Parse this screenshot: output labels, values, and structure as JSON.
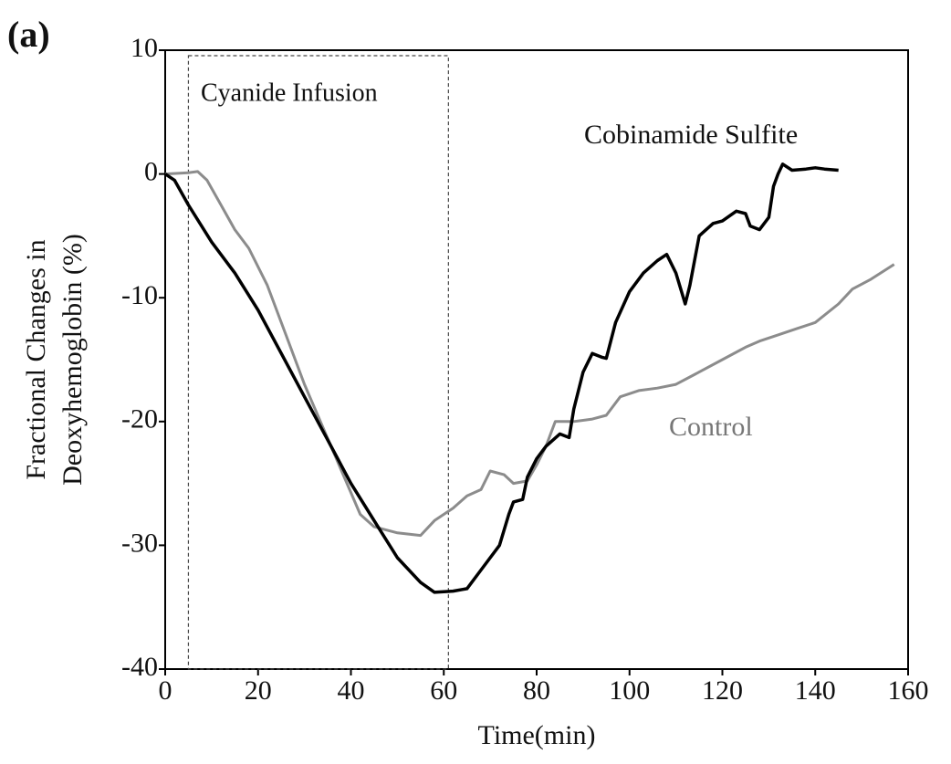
{
  "chart_data": {
    "type": "line",
    "panel_label": "(a)",
    "xlabel": "Time(min)",
    "ylabel": [
      "Fractional Changes in",
      "Deoxyhemoglobin (%)"
    ],
    "xlim": [
      0,
      160
    ],
    "xticks": [
      0,
      20,
      40,
      60,
      80,
      100,
      120,
      140,
      160
    ],
    "ylim": [
      -40,
      10
    ],
    "yticks": [
      10,
      0,
      -10,
      -20,
      -30,
      -40
    ],
    "grid": false,
    "region": {
      "label": "Cyanide Infusion",
      "x": [
        5,
        61
      ]
    },
    "series": [
      {
        "name": "Cobinamide Sulfite",
        "color": "#000000",
        "x": [
          0,
          2,
          5,
          10,
          15,
          20,
          25,
          30,
          35,
          40,
          45,
          50,
          55,
          58,
          62,
          65,
          68,
          72,
          74,
          75,
          77,
          78,
          80,
          82,
          85,
          87,
          88,
          90,
          92,
          94,
          95,
          97,
          100,
          103,
          106,
          108,
          110,
          112,
          113,
          115,
          118,
          120,
          123,
          125,
          126,
          128,
          130,
          131,
          132,
          133,
          135,
          138,
          140,
          142,
          145
        ],
        "values": [
          0,
          -0.5,
          -2.5,
          -5.5,
          -8,
          -11,
          -14.5,
          -18,
          -21.5,
          -25,
          -28,
          -31,
          -33,
          -33.8,
          -33.7,
          -33.5,
          -32,
          -30,
          -27.5,
          -26.5,
          -26.3,
          -24.5,
          -23,
          -22,
          -21,
          -21.3,
          -19,
          -16,
          -14.5,
          -14.8,
          -14.9,
          -12,
          -9.5,
          -8,
          -7,
          -6.5,
          -8,
          -10.5,
          -9,
          -5,
          -4,
          -3.8,
          -3,
          -3.2,
          -4.2,
          -4.5,
          -3.5,
          -1,
          0,
          0.8,
          0.3,
          0.4,
          0.5,
          0.4,
          0.3
        ]
      },
      {
        "name": "Control",
        "color": "#8c8c8c",
        "x": [
          0,
          5,
          7,
          9,
          12,
          15,
          18,
          22,
          26,
          30,
          34,
          38,
          42,
          45,
          50,
          55,
          58,
          62,
          65,
          68,
          70,
          73,
          75,
          78,
          80,
          82,
          84,
          88,
          92,
          95,
          98,
          102,
          106,
          110,
          115,
          120,
          125,
          128,
          132,
          136,
          140,
          145,
          148,
          152,
          157
        ],
        "values": [
          0,
          0.1,
          0.2,
          -0.5,
          -2.5,
          -4.5,
          -6,
          -9,
          -13,
          -17,
          -20.5,
          -24,
          -27.5,
          -28.5,
          -29,
          -29.2,
          -28,
          -27,
          -26,
          -25.5,
          -24,
          -24.3,
          -25,
          -24.8,
          -23.5,
          -22,
          -20,
          -20,
          -19.8,
          -19.5,
          -18,
          -17.5,
          -17.3,
          -17,
          -16,
          -15,
          -14,
          -13.5,
          -13,
          -12.5,
          -12,
          -10.5,
          -9.3,
          -8.5,
          -7.3
        ]
      }
    ]
  }
}
